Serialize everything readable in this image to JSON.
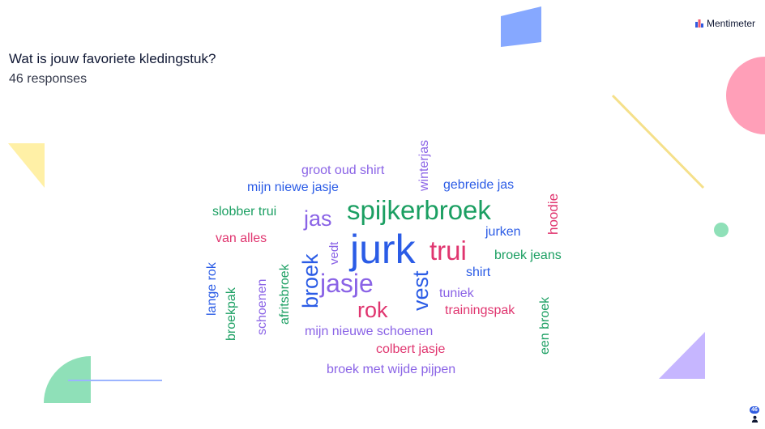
{
  "header": {
    "brand": "Mentimeter",
    "colors": {
      "bar1": "#2f5be0",
      "bar2": "#f05a6e",
      "bar3": "#2f5be0"
    }
  },
  "slide": {
    "question": "Wat is jouw favoriete kledingstuk?",
    "responses": "46 responses"
  },
  "wordcloud": {
    "colors": {
      "blue": "#2b5ce6",
      "purple": "#8a63e6",
      "green": "#1b9f62",
      "pink": "#e0356f"
    },
    "words": [
      {
        "text": "winterjas",
        "color": "purple"
      },
      {
        "text": "groot oud shirt",
        "color": "purple"
      },
      {
        "text": "gebreide jas",
        "color": "blue"
      },
      {
        "text": "mijn niewe jasje",
        "color": "blue"
      },
      {
        "text": "hoodie",
        "color": "pink"
      },
      {
        "text": "slobber trui",
        "color": "green"
      },
      {
        "text": "jas",
        "color": "purple"
      },
      {
        "text": "spijkerbroek",
        "color": "green"
      },
      {
        "text": "jurken",
        "color": "blue"
      },
      {
        "text": "van alles",
        "color": "pink"
      },
      {
        "text": "vedt",
        "color": "purple"
      },
      {
        "text": "jurk",
        "color": "blue"
      },
      {
        "text": "trui",
        "color": "pink"
      },
      {
        "text": "broek jeans",
        "color": "green"
      },
      {
        "text": "lange rok",
        "color": "blue"
      },
      {
        "text": "broek",
        "color": "blue"
      },
      {
        "text": "shirt",
        "color": "blue"
      },
      {
        "text": "afritsbroek",
        "color": "green"
      },
      {
        "text": "vest",
        "color": "blue"
      },
      {
        "text": "schoenen",
        "color": "purple"
      },
      {
        "text": "jasje",
        "color": "purple"
      },
      {
        "text": "broekpak",
        "color": "green"
      },
      {
        "text": "tuniek",
        "color": "purple"
      },
      {
        "text": "een broek",
        "color": "green"
      },
      {
        "text": "rok",
        "color": "pink"
      },
      {
        "text": "trainingspak",
        "color": "pink"
      },
      {
        "text": "mijn nieuwe schoenen",
        "color": "purple"
      },
      {
        "text": "colbert jasje",
        "color": "pink"
      },
      {
        "text": "broek met wijde pijpen",
        "color": "purple"
      }
    ]
  },
  "decor": {
    "colors": {
      "blue_parallelogram": "#86a8ff",
      "pink_circle": "#ff9fb8",
      "yellow_line": "#f5e08a",
      "green_dot": "#8fe0b8",
      "yellow_triangle": "#fff0a6",
      "green_semicircle": "#8fe0b8",
      "blue_line": "#9bb4ff",
      "purple_triangle": "#c6b6ff"
    }
  },
  "participants": {
    "count": "46",
    "icon": "person-icon"
  }
}
